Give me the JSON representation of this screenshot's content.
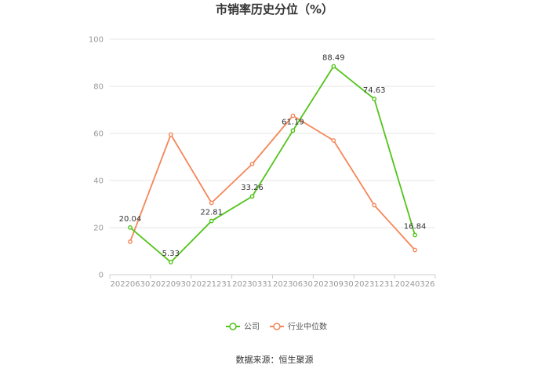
{
  "chart_data": {
    "type": "line",
    "title": "市销率历史分位（%）",
    "categories": [
      "20220630",
      "20220930",
      "20221231",
      "20230331",
      "20230630",
      "20230930",
      "20231231",
      "20240326"
    ],
    "yticks": [
      "0",
      "20",
      "40",
      "60",
      "80",
      "100"
    ],
    "ylim": [
      0,
      100
    ],
    "grid": true,
    "legend_position": "bottom",
    "series": [
      {
        "name": "公司",
        "color": "#52c41a",
        "values": [
          20.04,
          5.33,
          22.81,
          33.26,
          61.19,
          88.49,
          74.63,
          16.84
        ],
        "labels": [
          "20.04",
          "5.33",
          "22.81",
          "33.26",
          "61.19",
          "88.49",
          "74.63",
          "16.84"
        ]
      },
      {
        "name": "行业中位数",
        "color": "#f4875a",
        "values": [
          14,
          59.5,
          30.5,
          47,
          67.5,
          57,
          29.5,
          10.5
        ]
      }
    ],
    "source": "数据来源：恒生聚源"
  }
}
